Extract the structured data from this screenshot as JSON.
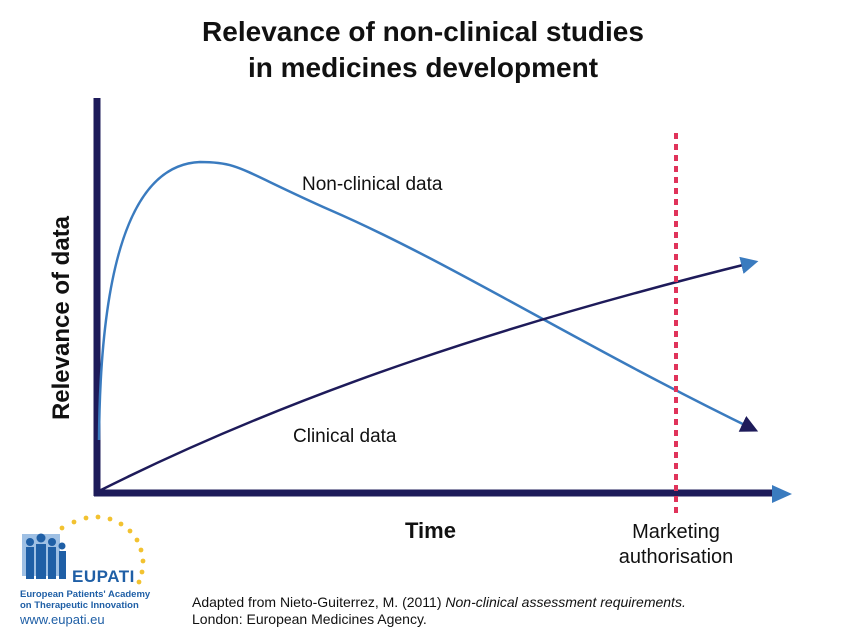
{
  "title": {
    "line1": "Relevance of non-clinical studies",
    "line2": "in medicines development"
  },
  "axes": {
    "y_label": "Relevance of data",
    "x_label": "Time"
  },
  "curves": {
    "nonclinical_label": "Non-clinical data",
    "clinical_label": "Clinical data"
  },
  "marker": {
    "line1": "Marketing",
    "line2": "authorisation"
  },
  "logo": {
    "name": "EUPATI",
    "sub1": "European Patients' Academy",
    "sub2": "on Therapeutic Innovation",
    "url": "www.eupati.eu"
  },
  "citation": {
    "line1_prefix": "Adapted from Nieto-Guiterrez, M. (2011) ",
    "line1_title": "Non-clinical assessment requirements.",
    "line2": "London: European Medicines Agency."
  },
  "colors": {
    "axis": "#1e1b5a",
    "nonclinical": "#3a7bbf",
    "clinical": "#1e1b5a",
    "marker": "#e0335a",
    "logo_blue": "#1f5fa6",
    "logo_star": "#f2c230"
  }
}
